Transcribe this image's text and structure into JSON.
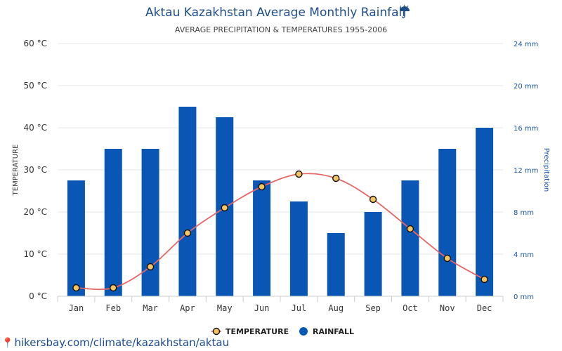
{
  "chart_data": {
    "type": "bar",
    "title": "Aktau Kazakhstan Average Monthly Rainfall",
    "title_icon": "umbrella-rain-icon",
    "subtitle": "AVERAGE PRECIPITATION & TEMPERATURES 1955-2006",
    "categories": [
      "Jan",
      "Feb",
      "Mar",
      "Apr",
      "May",
      "Jun",
      "Jul",
      "Aug",
      "Sep",
      "Oct",
      "Nov",
      "Dec"
    ],
    "series": [
      {
        "name": "RAINFALL",
        "type": "bar",
        "axis": "right",
        "unit": "mm",
        "color": "#0a56b4",
        "values": [
          11,
          14,
          14,
          18,
          17,
          11,
          9,
          6,
          8,
          11,
          14,
          16
        ]
      },
      {
        "name": "TEMPERATURE",
        "type": "line",
        "axis": "left",
        "unit": "°C",
        "color": "#e86565",
        "marker_fill": "#f5c462",
        "values": [
          2,
          2,
          7,
          15,
          21,
          26,
          29,
          28,
          23,
          16,
          9,
          4
        ]
      }
    ],
    "y_left": {
      "label": "TEMPERATURE",
      "range": [
        0,
        60
      ],
      "tick_labels": [
        "0 °C",
        "10 °C",
        "20 °C",
        "30 °C",
        "40 °C",
        "50 °C",
        "60 °C"
      ]
    },
    "y_right": {
      "label": "Precipitation",
      "range": [
        0,
        24
      ],
      "tick_labels": [
        "0 mm",
        "4 mm",
        "8 mm",
        "12 mm",
        "16 mm",
        "20 mm",
        "24 mm"
      ]
    },
    "grid": true,
    "legend_position": "bottom",
    "legend": [
      "TEMPERATURE",
      "RAINFALL"
    ]
  },
  "source_text": "hikersbay.com/climate/kazakhstan/aktau",
  "source_icon": "map-pin-icon"
}
